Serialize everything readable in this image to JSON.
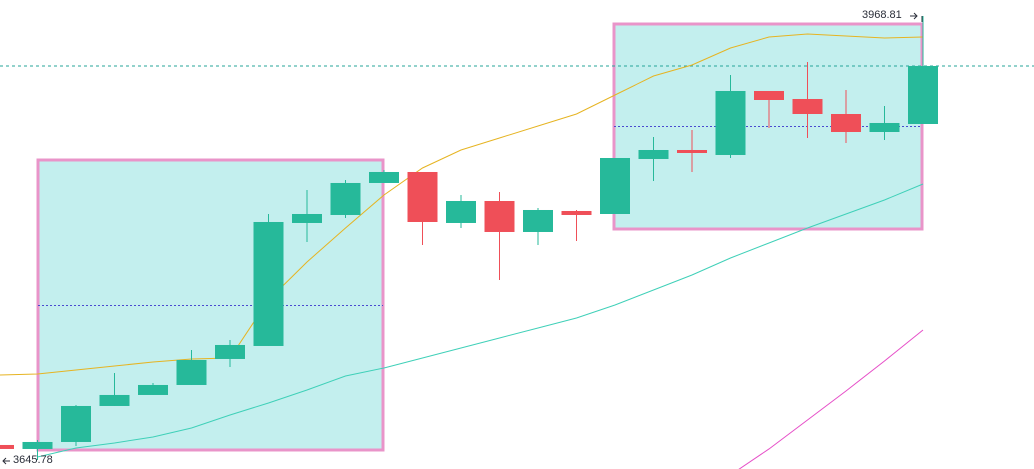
{
  "chart_data": {
    "type": "candlestick",
    "up_color": "#26b99a",
    "down_color": "#ef4f58",
    "open": [
      3656.71,
      3653.8,
      3658.89,
      3685.08,
      3693.09,
      3700.36,
      3719.28,
      3728.73,
      3818.22,
      3824.04,
      3847.32,
      3855.32,
      3818.22,
      3834.22,
      3811.67,
      3826.95,
      3824.76,
      3864.78,
      3871.32,
      3867.69,
      3914.25,
      3908.43,
      3897.51,
      3884.42,
      3890.24
    ],
    "high": [
      3656.71,
      3660.35,
      3685.81,
      3709.09,
      3701.81,
      3725.82,
      3733.1,
      3824.76,
      3842.22,
      3849.5,
      3856.77,
      3855.32,
      3838.59,
      3840.77,
      3829.13,
      3827.67,
      3865.5,
      3880.78,
      3885.87,
      3925.89,
      3914.25,
      3935.34,
      3914.97,
      3903.33,
      3968.81
    ],
    "low": [
      3653.8,
      3645.78,
      3655.98,
      3685.08,
      3693.09,
      3700.36,
      3713.46,
      3728.73,
      3804.39,
      3821.85,
      3847.32,
      3802.21,
      3814.58,
      3776.75,
      3802.21,
      3805.12,
      3824.76,
      3848.77,
      3855.32,
      3865.5,
      3887.33,
      3880.05,
      3876.42,
      3878.6,
      3890.24
    ],
    "close": [
      3653.8,
      3658.89,
      3685.08,
      3693.09,
      3700.36,
      3718.55,
      3729.46,
      3818.94,
      3824.76,
      3847.32,
      3855.32,
      3818.94,
      3834.22,
      3811.67,
      3827.67,
      3824.04,
      3865.5,
      3871.32,
      3869.14,
      3914.25,
      3907.7,
      3897.51,
      3884.42,
      3890.97,
      3932.43
    ],
    "lines": [
      {
        "color": "#e6b422",
        "values": [
          3707.64,
          3708.36,
          3711.27,
          3714.18,
          3717.09,
          3719.28,
          3720.0,
          3762.2,
          3789.84,
          3814.58,
          3838.59,
          3858.23,
          3871.32,
          3880.05,
          3888.78,
          3897.51,
          3911.34,
          3925.16,
          3933.16,
          3945.53,
          3953.53,
          3955.71,
          3954.26,
          3952.8,
          3953.53
        ]
      },
      {
        "color": "#3fd0b8",
        "values": [
          null,
          3647.98,
          3654.53,
          3658.17,
          3662.53,
          3669.08,
          3678.54,
          3687.27,
          3696.72,
          3706.91,
          3712.73,
          3720.0,
          3727.28,
          3734.55,
          3741.83,
          3749.1,
          3758.56,
          3769.47,
          3780.39,
          3792.75,
          3803.67,
          3814.58,
          3824.76,
          3834.95,
          3846.59
        ]
      },
      {
        "color": "#e64fc8",
        "values": [
          null,
          null,
          null,
          null,
          null,
          null,
          null,
          null,
          null,
          null,
          null,
          null,
          null,
          null,
          null,
          null,
          null,
          null,
          null,
          3634.89,
          3653.8,
          3674.9,
          3696.0,
          3717.82,
          3740.37
        ]
      }
    ],
    "high_label": "3968.81",
    "low_label": "3645.78"
  }
}
